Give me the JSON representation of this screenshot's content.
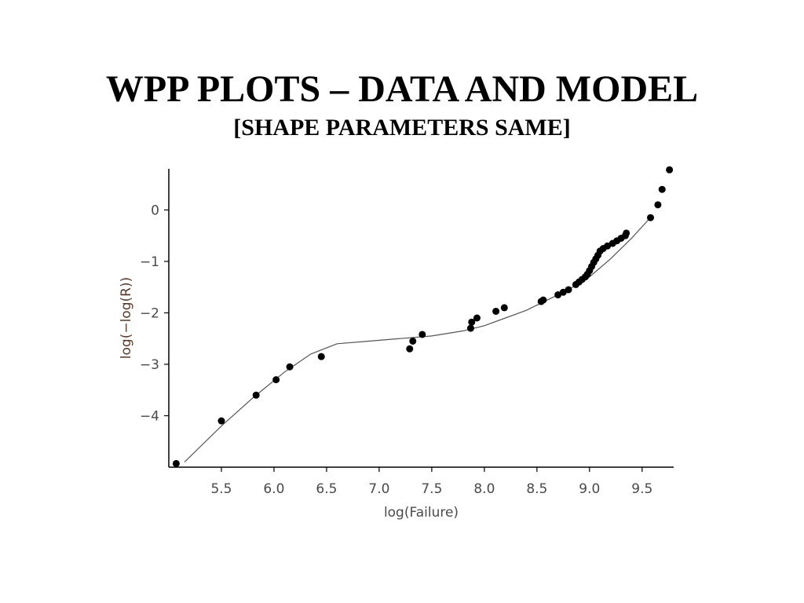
{
  "slide": {
    "title": "WPP PLOTS – DATA AND MODEL",
    "subtitle": "[SHAPE PARAMETERS SAME]"
  },
  "chart_data": {
    "type": "scatter",
    "title": "",
    "xlabel": "log(Failure)",
    "ylabel": "log(−log(R))",
    "xlim": [
      5.0,
      9.8
    ],
    "ylim": [
      -5.0,
      0.8
    ],
    "x_ticks": [
      5.5,
      6.0,
      6.5,
      7.0,
      7.5,
      8.0,
      8.5,
      9.0,
      9.5
    ],
    "x_tick_labels": [
      "5.5",
      "6.0",
      "6.5",
      "7.0",
      "7.5",
      "8.0",
      "8.5",
      "9.0",
      "9.5"
    ],
    "y_ticks": [
      0,
      -1,
      -2,
      -3,
      -4
    ],
    "y_tick_labels": [
      "0",
      "−1",
      "−2",
      "−3",
      "−4"
    ],
    "grid": false,
    "series": [
      {
        "kind": "points",
        "x": [
          5.07,
          5.5,
          5.83,
          6.02,
          6.15,
          6.45,
          7.29,
          7.32,
          7.41,
          7.87,
          7.88,
          7.93,
          8.11,
          8.19,
          8.54,
          8.56,
          8.7,
          8.75,
          8.8,
          8.87,
          8.9,
          8.93,
          8.96,
          8.98,
          9.0,
          9.02,
          9.04,
          9.06,
          9.08,
          9.1,
          9.13,
          9.17,
          9.22,
          9.26,
          9.3,
          9.34,
          9.35,
          9.58,
          9.65,
          9.69,
          9.76
        ],
        "y": [
          -4.93,
          -4.1,
          -3.6,
          -3.3,
          -3.05,
          -2.85,
          -2.7,
          -2.55,
          -2.42,
          -2.3,
          -2.18,
          -2.1,
          -1.97,
          -1.9,
          -1.78,
          -1.75,
          -1.65,
          -1.6,
          -1.55,
          -1.45,
          -1.4,
          -1.35,
          -1.3,
          -1.25,
          -1.18,
          -1.1,
          -1.02,
          -0.95,
          -0.88,
          -0.8,
          -0.75,
          -0.7,
          -0.65,
          -0.6,
          -0.55,
          -0.5,
          -0.45,
          -0.15,
          0.1,
          0.4,
          0.78
        ]
      },
      {
        "kind": "line",
        "x": [
          5.15,
          5.5,
          5.8,
          6.1,
          6.35,
          6.6,
          6.9,
          7.2,
          7.5,
          7.8,
          8.0,
          8.2,
          8.4,
          8.6,
          8.8,
          9.0,
          9.2,
          9.4,
          9.6
        ],
        "y": [
          -4.9,
          -4.2,
          -3.65,
          -3.15,
          -2.8,
          -2.6,
          -2.55,
          -2.5,
          -2.45,
          -2.35,
          -2.25,
          -2.1,
          -1.95,
          -1.75,
          -1.55,
          -1.3,
          -0.95,
          -0.55,
          -0.1
        ]
      }
    ]
  }
}
